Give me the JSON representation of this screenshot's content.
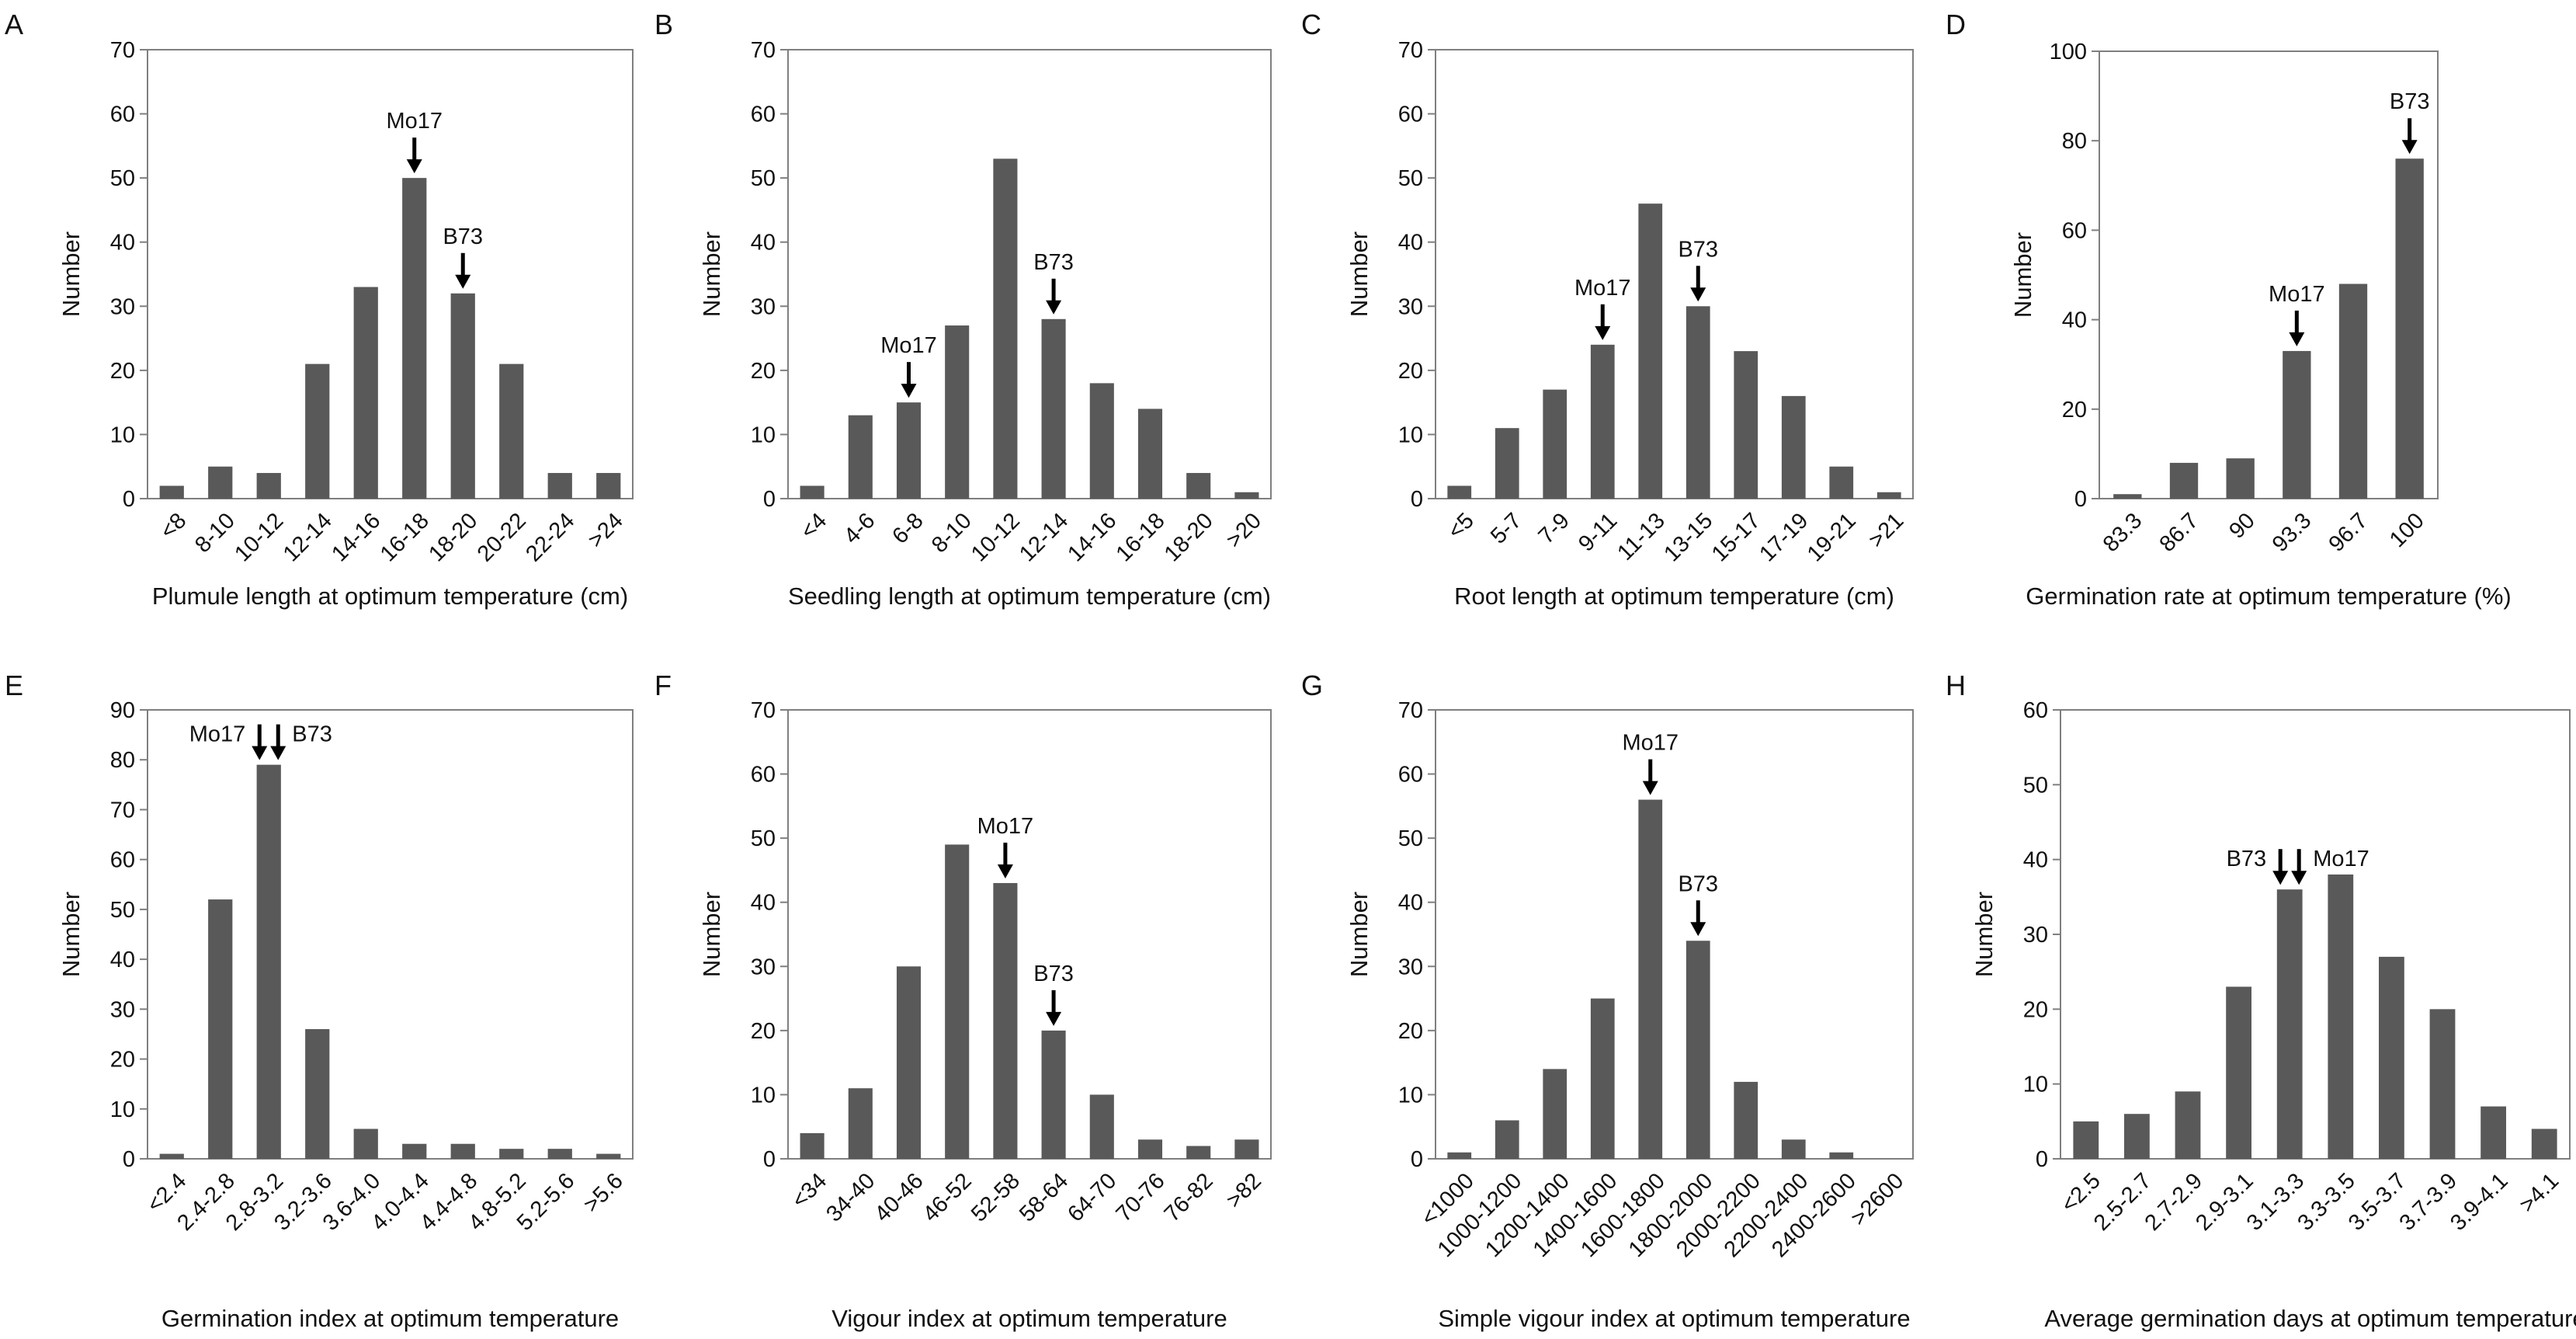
{
  "figure_title": "",
  "colors": {
    "bar": "#595959",
    "axis": "#7f7f7f",
    "text": "#111111",
    "background": "#ffffff"
  },
  "chart_data": [
    {
      "panel": "A",
      "type": "bar",
      "categories": [
        "<8",
        "8-10",
        "10-12",
        "12-14",
        "14-16",
        "16-18",
        "18-20",
        "20-22",
        "22-24",
        ">24"
      ],
      "values": [
        2,
        5,
        4,
        21,
        33,
        50,
        32,
        21,
        4,
        4
      ],
      "xlabel": "Plumule length at optimum temperature (cm)",
      "ylabel": "Number",
      "ylim": [
        0,
        70
      ],
      "yticks": [
        0,
        10,
        20,
        30,
        40,
        50,
        60,
        70
      ],
      "annotations": [
        {
          "text": "Mo17",
          "category": "16-18"
        },
        {
          "text": "B73",
          "category": "18-20"
        }
      ]
    },
    {
      "panel": "B",
      "type": "bar",
      "categories": [
        "<4",
        "4-6",
        "6-8",
        "8-10",
        "10-12",
        "12-14",
        "14-16",
        "16-18",
        "18-20",
        ">20"
      ],
      "values": [
        2,
        13,
        15,
        27,
        53,
        28,
        18,
        14,
        4,
        1
      ],
      "xlabel": "Seedling length at optimum temperature (cm)",
      "ylabel": "Number",
      "ylim": [
        0,
        70
      ],
      "yticks": [
        0,
        10,
        20,
        30,
        40,
        50,
        60,
        70
      ],
      "annotations": [
        {
          "text": "Mo17",
          "category": "6-8"
        },
        {
          "text": "B73",
          "category": "12-14"
        }
      ]
    },
    {
      "panel": "C",
      "type": "bar",
      "categories": [
        "<5",
        "5-7",
        "7-9",
        "9-11",
        "11-13",
        "13-15",
        "15-17",
        "17-19",
        "19-21",
        ">21"
      ],
      "values": [
        2,
        11,
        17,
        24,
        46,
        30,
        23,
        16,
        5,
        1
      ],
      "xlabel": "Root length at optimum temperature (cm)",
      "ylabel": "Number",
      "ylim": [
        0,
        70
      ],
      "yticks": [
        0,
        10,
        20,
        30,
        40,
        50,
        60,
        70
      ],
      "annotations": [
        {
          "text": "Mo17",
          "category": "9-11"
        },
        {
          "text": "B73",
          "category": "13-15"
        }
      ]
    },
    {
      "panel": "D",
      "type": "bar",
      "categories": [
        "83.3",
        "86.7",
        "90",
        "93.3",
        "96.7",
        "100"
      ],
      "values": [
        1,
        8,
        9,
        33,
        48,
        76
      ],
      "xlabel": "Germination rate at optimum temperature (%)",
      "ylabel": "Number",
      "ylim": [
        0,
        100
      ],
      "yticks": [
        0,
        20,
        40,
        60,
        80,
        100
      ],
      "annotations": [
        {
          "text": "Mo17",
          "category": "93.3"
        },
        {
          "text": "B73",
          "category": "100"
        }
      ]
    },
    {
      "panel": "E",
      "type": "bar",
      "categories": [
        "<2.4",
        "2.4-2.8",
        "2.8-3.2",
        "3.2-3.6",
        "3.6-4.0",
        "4.0-4.4",
        "4.4-4.8",
        "4.8-5.2",
        "5.2-5.6",
        ">5.6"
      ],
      "values": [
        1,
        52,
        79,
        26,
        6,
        3,
        3,
        2,
        2,
        1
      ],
      "xlabel": "Germination index at optimum temperature",
      "ylabel": "Number",
      "ylim": [
        0,
        90
      ],
      "yticks": [
        0,
        10,
        20,
        30,
        40,
        50,
        60,
        70,
        80,
        90
      ],
      "annotations": [
        {
          "text": "Mo17",
          "category": "2.8-3.2"
        },
        {
          "text": "B73",
          "category": "2.8-3.2"
        }
      ]
    },
    {
      "panel": "F",
      "type": "bar",
      "categories": [
        "<34",
        "34-40",
        "40-46",
        "46-52",
        "52-58",
        "58-64",
        "64-70",
        "70-76",
        "76-82",
        ">82"
      ],
      "values": [
        4,
        11,
        30,
        49,
        43,
        20,
        10,
        3,
        2,
        3
      ],
      "xlabel": "Vigour index at optimum temperature",
      "ylabel": "Number",
      "ylim": [
        0,
        70
      ],
      "yticks": [
        0,
        10,
        20,
        30,
        40,
        50,
        60,
        70
      ],
      "annotations": [
        {
          "text": "Mo17",
          "category": "52-58"
        },
        {
          "text": "B73",
          "category": "58-64"
        }
      ]
    },
    {
      "panel": "G",
      "type": "bar",
      "categories": [
        "<1000",
        "1000-1200",
        "1200-1400",
        "1400-1600",
        "1600-1800",
        "1800-2000",
        "2000-2200",
        "2200-2400",
        "2400-2600",
        ">2600"
      ],
      "values": [
        1,
        6,
        14,
        25,
        56,
        34,
        12,
        3,
        1,
        0
      ],
      "xlabel": "Simple vigour index at optimum temperature",
      "ylabel": "Number",
      "ylim": [
        0,
        70
      ],
      "yticks": [
        0,
        10,
        20,
        30,
        40,
        50,
        60,
        70
      ],
      "annotations": [
        {
          "text": "Mo17",
          "category": "1600-1800"
        },
        {
          "text": "B73",
          "category": "1800-2000"
        }
      ]
    },
    {
      "panel": "H",
      "type": "bar",
      "categories": [
        "<2.5",
        "2.5-2.7",
        "2.7-2.9",
        "2.9-3.1",
        "3.1-3.3",
        "3.3-3.5",
        "3.5-3.7",
        "3.7-3.9",
        "3.9-4.1",
        ">4.1"
      ],
      "values": [
        5,
        6,
        9,
        23,
        36,
        38,
        27,
        20,
        7,
        4
      ],
      "xlabel": "Average germination days at optimum temperature",
      "ylabel": "Number",
      "ylim": [
        0,
        60
      ],
      "yticks": [
        0,
        10,
        20,
        30,
        40,
        50,
        60
      ],
      "annotations": [
        {
          "text": "B73",
          "category": "3.1-3.3"
        },
        {
          "text": "Mo17",
          "category": "3.1-3.3"
        }
      ]
    }
  ]
}
